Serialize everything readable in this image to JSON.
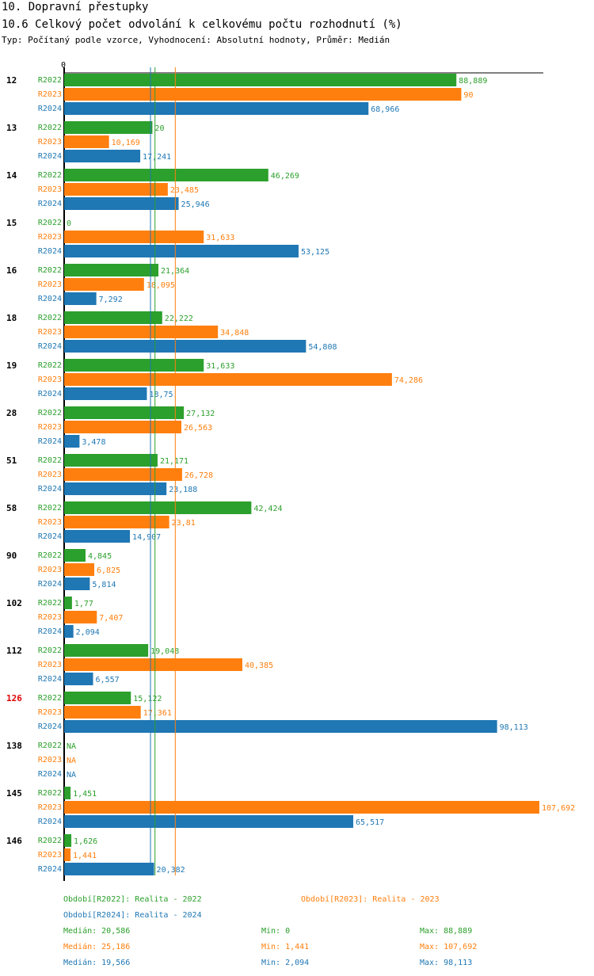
{
  "header": {
    "section": "10. Dopravní přestupky",
    "chart_title": "10.6 Celkový počet odvolání k celkovému počtu rozhodnutí (%)",
    "meta": "Typ: Počítaný podle vzorce, Vyhodnocení: Absolutní hodnoty, Průměr: Medián"
  },
  "colors": {
    "R2022": "#2ca02c",
    "R2023": "#ff7f0e",
    "R2024": "#1f77b4",
    "highlight": "#e00000"
  },
  "chart_data": {
    "type": "bar",
    "orientation": "horizontal",
    "title": "10.6 Celkový počet odvolání k celkovému počtu rozhodnutí (%)",
    "xlim": [
      0,
      107.692
    ],
    "x_tick_label": "0",
    "highlight_category": "126",
    "categories": [
      "12",
      "13",
      "14",
      "15",
      "16",
      "18",
      "19",
      "28",
      "51",
      "58",
      "90",
      "102",
      "112",
      "126",
      "138",
      "145",
      "146"
    ],
    "series": [
      {
        "name": "R2022",
        "values": [
          88.889,
          20,
          46.269,
          0,
          21.364,
          22.222,
          31.633,
          27.132,
          21.171,
          42.424,
          4.845,
          1.77,
          19.048,
          15.122,
          null,
          1.451,
          1.626
        ],
        "labels": [
          "88,889",
          "20",
          "46,269",
          "0",
          "21,364",
          "22,222",
          "31,633",
          "27,132",
          "21,171",
          "42,424",
          "4,845",
          "1,77",
          "19,048",
          "15,122",
          "NA",
          "1,451",
          "1,626"
        ]
      },
      {
        "name": "R2023",
        "values": [
          90,
          10.169,
          23.485,
          31.633,
          18.095,
          34.848,
          74.286,
          26.563,
          26.728,
          23.81,
          6.825,
          7.407,
          40.385,
          17.361,
          null,
          107.692,
          1.441
        ],
        "labels": [
          "90",
          "10,169",
          "23,485",
          "31,633",
          "18,095",
          "34,848",
          "74,286",
          "26,563",
          "26,728",
          "23,81",
          "6,825",
          "7,407",
          "40,385",
          "17,361",
          "NA",
          "107,692",
          "1,441"
        ]
      },
      {
        "name": "R2024",
        "values": [
          68.966,
          17.241,
          25.946,
          53.125,
          7.292,
          54.808,
          18.75,
          3.478,
          23.188,
          14.907,
          5.814,
          2.094,
          6.557,
          98.113,
          null,
          65.517,
          20.382
        ],
        "labels": [
          "68,966",
          "17,241",
          "25,946",
          "53,125",
          "7,292",
          "54,808",
          "18,75",
          "3,478",
          "23,188",
          "14,907",
          "5,814",
          "2,094",
          "6,557",
          "98,113",
          "NA",
          "65,517",
          "20,382"
        ]
      }
    ],
    "median_lines": [
      {
        "series": "R2022",
        "value": 20.586
      },
      {
        "series": "R2023",
        "value": 25.186
      },
      {
        "series": "R2024",
        "value": 19.566
      }
    ]
  },
  "legend": {
    "items": [
      {
        "series": "R2022",
        "label": "Období[R2022]: Realita - 2022"
      },
      {
        "series": "R2023",
        "label": "Období[R2023]: Realita - 2023"
      },
      {
        "series": "R2024",
        "label": "Období[R2024]: Realita - 2024"
      }
    ],
    "stats": [
      {
        "series": "R2022",
        "median": "Medián: 20,586",
        "min": "Min: 0",
        "max": "Max: 88,889"
      },
      {
        "series": "R2023",
        "median": "Medián: 25,186",
        "min": "Min: 1,441",
        "max": "Max: 107,692"
      },
      {
        "series": "R2024",
        "median": "Medián: 19,566",
        "min": "Min: 2,094",
        "max": "Max: 98,113"
      }
    ]
  }
}
